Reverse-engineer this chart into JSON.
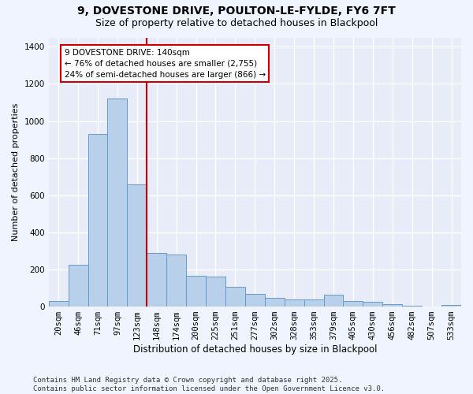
{
  "title": "9, DOVESTONE DRIVE, POULTON-LE-FYLDE, FY6 7FT",
  "subtitle": "Size of property relative to detached houses in Blackpool",
  "xlabel": "Distribution of detached houses by size in Blackpool",
  "ylabel": "Number of detached properties",
  "categories": [
    "20sqm",
    "46sqm",
    "71sqm",
    "97sqm",
    "123sqm",
    "148sqm",
    "174sqm",
    "200sqm",
    "225sqm",
    "251sqm",
    "277sqm",
    "302sqm",
    "328sqm",
    "353sqm",
    "379sqm",
    "405sqm",
    "430sqm",
    "456sqm",
    "482sqm",
    "507sqm",
    "533sqm"
  ],
  "values": [
    28,
    225,
    930,
    1120,
    660,
    290,
    280,
    165,
    160,
    105,
    70,
    45,
    38,
    38,
    65,
    28,
    25,
    12,
    4,
    0,
    8
  ],
  "bar_color": "#b8d0ea",
  "bar_edge_color": "#6699cc",
  "vline_color": "#cc0000",
  "annotation_text": "9 DOVESTONE DRIVE: 140sqm\n← 76% of detached houses are smaller (2,755)\n24% of semi-detached houses are larger (866) →",
  "annotation_box_color": "#cc0000",
  "annotation_text_color": "#000000",
  "ylim": [
    0,
    1450
  ],
  "yticks": [
    0,
    200,
    400,
    600,
    800,
    1000,
    1200,
    1400
  ],
  "bg_color": "#e8ecf8",
  "grid_color": "#ffffff",
  "footer": "Contains HM Land Registry data © Crown copyright and database right 2025.\nContains public sector information licensed under the Open Government Licence v3.0.",
  "title_fontsize": 10,
  "subtitle_fontsize": 9,
  "xlabel_fontsize": 8.5,
  "ylabel_fontsize": 8,
  "tick_fontsize": 7.5,
  "annotation_fontsize": 7.5,
  "footer_fontsize": 6.5
}
